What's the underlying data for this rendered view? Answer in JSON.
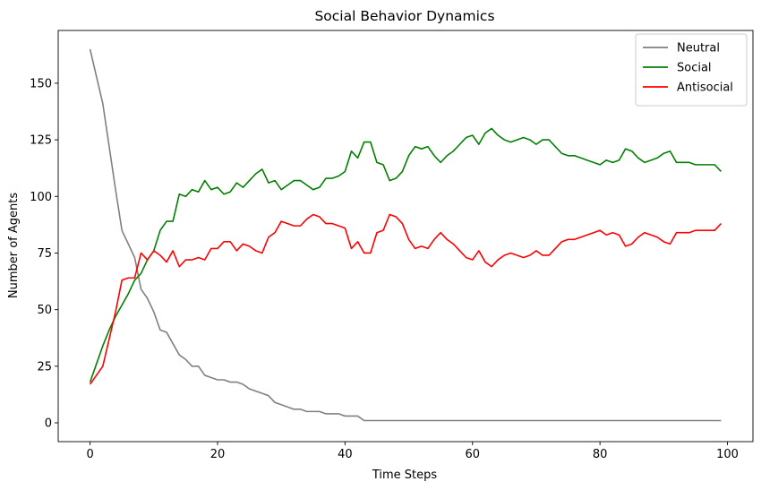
{
  "chart_data": {
    "type": "line",
    "title": "Social Behavior Dynamics",
    "xlabel": "Time Steps",
    "ylabel": "Number of Agents",
    "xlim": [
      -5,
      104
    ],
    "ylim": [
      -8.3,
      173.3
    ],
    "xticks": [
      0,
      20,
      40,
      60,
      80,
      100
    ],
    "yticks": [
      0,
      25,
      50,
      75,
      100,
      125,
      150
    ],
    "grid": false,
    "legend_position": "top-right",
    "x": [
      0,
      1,
      2,
      3,
      4,
      5,
      6,
      7,
      8,
      9,
      10,
      11,
      12,
      13,
      14,
      15,
      16,
      17,
      18,
      19,
      20,
      21,
      22,
      23,
      24,
      25,
      26,
      27,
      28,
      29,
      30,
      31,
      32,
      33,
      34,
      35,
      36,
      37,
      38,
      39,
      40,
      41,
      42,
      43,
      44,
      45,
      46,
      47,
      48,
      49,
      50,
      51,
      52,
      53,
      54,
      55,
      56,
      57,
      58,
      59,
      60,
      61,
      62,
      63,
      64,
      65,
      66,
      67,
      68,
      69,
      70,
      71,
      72,
      73,
      74,
      75,
      76,
      77,
      78,
      79,
      80,
      81,
      82,
      83,
      84,
      85,
      86,
      87,
      88,
      89,
      90,
      91,
      92,
      93,
      94,
      95,
      96,
      97,
      98,
      99
    ],
    "series": [
      {
        "name": "Neutral",
        "color": "#808080",
        "values": [
          165,
          153,
          141,
          122,
          103,
          85,
          79,
          73,
          59,
          55,
          49,
          41,
          40,
          35,
          30,
          28,
          25,
          25,
          21,
          20,
          19,
          19,
          18,
          18,
          17,
          15,
          14,
          13,
          12,
          9,
          8,
          7,
          6,
          6,
          5,
          5,
          5,
          4,
          4,
          4,
          3,
          3,
          3,
          1,
          1,
          1,
          1,
          1,
          1,
          1,
          1,
          1,
          1,
          1,
          1,
          1,
          1,
          1,
          1,
          1,
          1,
          1,
          1,
          1,
          1,
          1,
          1,
          1,
          1,
          1,
          1,
          1,
          1,
          1,
          1,
          1,
          1,
          1,
          1,
          1,
          1,
          1,
          1,
          1,
          1,
          1,
          1,
          1,
          1,
          1,
          1,
          1,
          1,
          1,
          1,
          1,
          1,
          1,
          1,
          1
        ]
      },
      {
        "name": "Social",
        "color": "#008000",
        "values": [
          18,
          26,
          34,
          41,
          47,
          52,
          57,
          63,
          66,
          72,
          76,
          85,
          89,
          89,
          101,
          100,
          103,
          102,
          107,
          103,
          104,
          101,
          102,
          106,
          104,
          107,
          110,
          112,
          106,
          107,
          103,
          105,
          107,
          107,
          105,
          103,
          104,
          108,
          108,
          109,
          111,
          120,
          117,
          124,
          124,
          115,
          114,
          107,
          108,
          111,
          118,
          122,
          121,
          122,
          118,
          115,
          118,
          120,
          123,
          126,
          127,
          123,
          128,
          130,
          127,
          125,
          124,
          125,
          126,
          125,
          123,
          125,
          125,
          122,
          119,
          118,
          118,
          117,
          116,
          115,
          114,
          116,
          115,
          116,
          121,
          120,
          117,
          115,
          116,
          117,
          119,
          120,
          115,
          115,
          115,
          114,
          114,
          114,
          114,
          111
        ]
      },
      {
        "name": "Antisocial",
        "color": "#ff0000",
        "values": [
          17,
          21,
          25,
          37,
          49,
          63,
          64,
          64,
          75,
          72,
          76,
          74,
          71,
          76,
          69,
          72,
          72,
          73,
          72,
          77,
          77,
          80,
          80,
          76,
          79,
          78,
          76,
          75,
          82,
          84,
          89,
          88,
          87,
          87,
          90,
          92,
          91,
          88,
          88,
          87,
          86,
          77,
          80,
          75,
          75,
          84,
          85,
          92,
          91,
          88,
          81,
          77,
          78,
          77,
          81,
          84,
          81,
          79,
          76,
          73,
          72,
          76,
          71,
          69,
          72,
          74,
          75,
          74,
          73,
          74,
          76,
          74,
          74,
          77,
          80,
          81,
          81,
          82,
          83,
          84,
          85,
          83,
          84,
          83,
          78,
          79,
          82,
          84,
          83,
          82,
          80,
          79,
          84,
          84,
          84,
          85,
          85,
          85,
          85,
          88
        ]
      }
    ]
  }
}
